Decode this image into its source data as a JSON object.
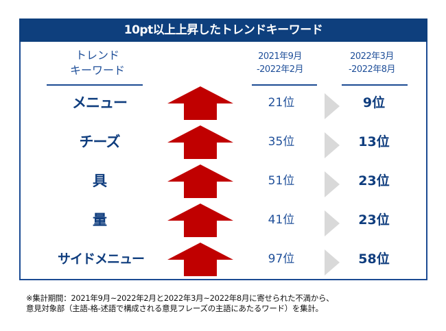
{
  "title": "10pt以上上昇したトレンドキーワード",
  "columns": {
    "keyword": [
      "トレンド",
      "キーワード"
    ],
    "period1": [
      "2021年9月",
      "-2022年2月"
    ],
    "period2": [
      "2022年3月",
      "-2022年8月"
    ]
  },
  "rows": [
    {
      "keyword": "メニュー",
      "rank_before": "21位",
      "rank_after": "9位",
      "trend_icon": "up-arrow-icon"
    },
    {
      "keyword": "チーズ",
      "rank_before": "35位",
      "rank_after": "13位",
      "trend_icon": "up-arrow-icon"
    },
    {
      "keyword": "具",
      "rank_before": "51位",
      "rank_after": "23位",
      "trend_icon": "up-arrow-icon"
    },
    {
      "keyword": "量",
      "rank_before": "41位",
      "rank_after": "23位",
      "trend_icon": "up-arrow-icon"
    },
    {
      "keyword": "サイドメニュー",
      "rank_before": "97位",
      "rank_after": "58位",
      "trend_icon": "up-arrow-icon"
    }
  ],
  "note": [
    "※集計期間：2021年9月~2022年2月と2022年3月~2022年8月に寄せられた不満から、",
    "意見対象部（主語-格-述語で構成される意見フレーズの主語にあたるワード）を集計。"
  ],
  "colors": {
    "header_bg": "#0e3f7d",
    "text_blue": "#0f3d7e",
    "arrow_red": "#c00000",
    "triangle_gray": "#d9d9d9"
  }
}
